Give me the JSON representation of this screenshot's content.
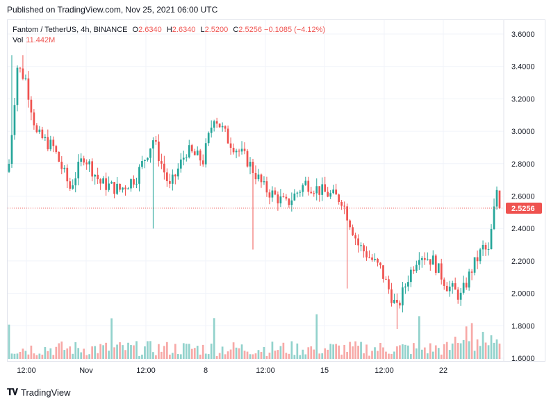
{
  "published": "Published on TradingView.com, Nov 25, 2021 06:00 UTC",
  "legend": {
    "symbol": "Fantom / TetherUS, 4h, BINANCE",
    "o_label": "O",
    "o_value": "2.6340",
    "h_label": "H",
    "h_value": "2.6340",
    "l_label": "L",
    "l_value": "2.5200",
    "c_label": "C",
    "c_value": "2.5256",
    "change": "−0.1085 (−4.12%)",
    "vol_label": "Vol",
    "vol_value": "11.442M"
  },
  "footer": {
    "logo_text": "TradingView"
  },
  "colors": {
    "up": "#26a69a",
    "down": "#ef5350",
    "vol_up": "#92d2cc",
    "vol_down": "#f7a9a7",
    "grid": "#f0f3fa"
  },
  "chart_data": {
    "type": "candlestick",
    "y_ticks": [
      "3.6000",
      "3.4000",
      "3.2000",
      "3.0000",
      "2.8000",
      "2.6000",
      "2.4000",
      "2.2000",
      "2.0000",
      "1.8000",
      "1.6000"
    ],
    "ylim": [
      1.6,
      3.6
    ],
    "x_ticks": [
      "12:00",
      "Nov",
      "12:00",
      "8",
      "12:00",
      "15",
      "12:00",
      "22"
    ],
    "last_price": "2.5256",
    "anchors": [
      {
        "i": 0,
        "c": 2.8
      },
      {
        "i": 3,
        "c": 3.4
      },
      {
        "i": 6,
        "c": 3.32
      },
      {
        "i": 10,
        "c": 2.98
      },
      {
        "i": 16,
        "c": 2.9
      },
      {
        "i": 22,
        "c": 2.65
      },
      {
        "i": 27,
        "c": 2.85
      },
      {
        "i": 33,
        "c": 2.68
      },
      {
        "i": 40,
        "c": 2.64
      },
      {
        "i": 46,
        "c": 2.72
      },
      {
        "i": 52,
        "c": 2.95
      },
      {
        "i": 58,
        "c": 2.65
      },
      {
        "i": 64,
        "c": 2.88
      },
      {
        "i": 70,
        "c": 2.82
      },
      {
        "i": 74,
        "c": 3.1
      },
      {
        "i": 79,
        "c": 2.95
      },
      {
        "i": 86,
        "c": 2.82
      },
      {
        "i": 92,
        "c": 2.65
      },
      {
        "i": 100,
        "c": 2.55
      },
      {
        "i": 107,
        "c": 2.68
      },
      {
        "i": 114,
        "c": 2.62
      },
      {
        "i": 120,
        "c": 2.58
      },
      {
        "i": 126,
        "c": 2.3
      },
      {
        "i": 134,
        "c": 2.15
      },
      {
        "i": 140,
        "c": 1.9
      },
      {
        "i": 144,
        "c": 2.1
      },
      {
        "i": 148,
        "c": 2.25
      },
      {
        "i": 153,
        "c": 2.2
      },
      {
        "i": 158,
        "c": 2.05
      },
      {
        "i": 163,
        "c": 1.98
      },
      {
        "i": 167,
        "c": 2.15
      },
      {
        "i": 171,
        "c": 2.28
      },
      {
        "i": 173,
        "c": 2.25
      },
      {
        "i": 176,
        "c": 2.64
      },
      {
        "i": 177,
        "c": 2.5256
      }
    ],
    "last_candle": {
      "o": 2.634,
      "h": 2.634,
      "l": 2.52,
      "c": 2.5256
    }
  }
}
